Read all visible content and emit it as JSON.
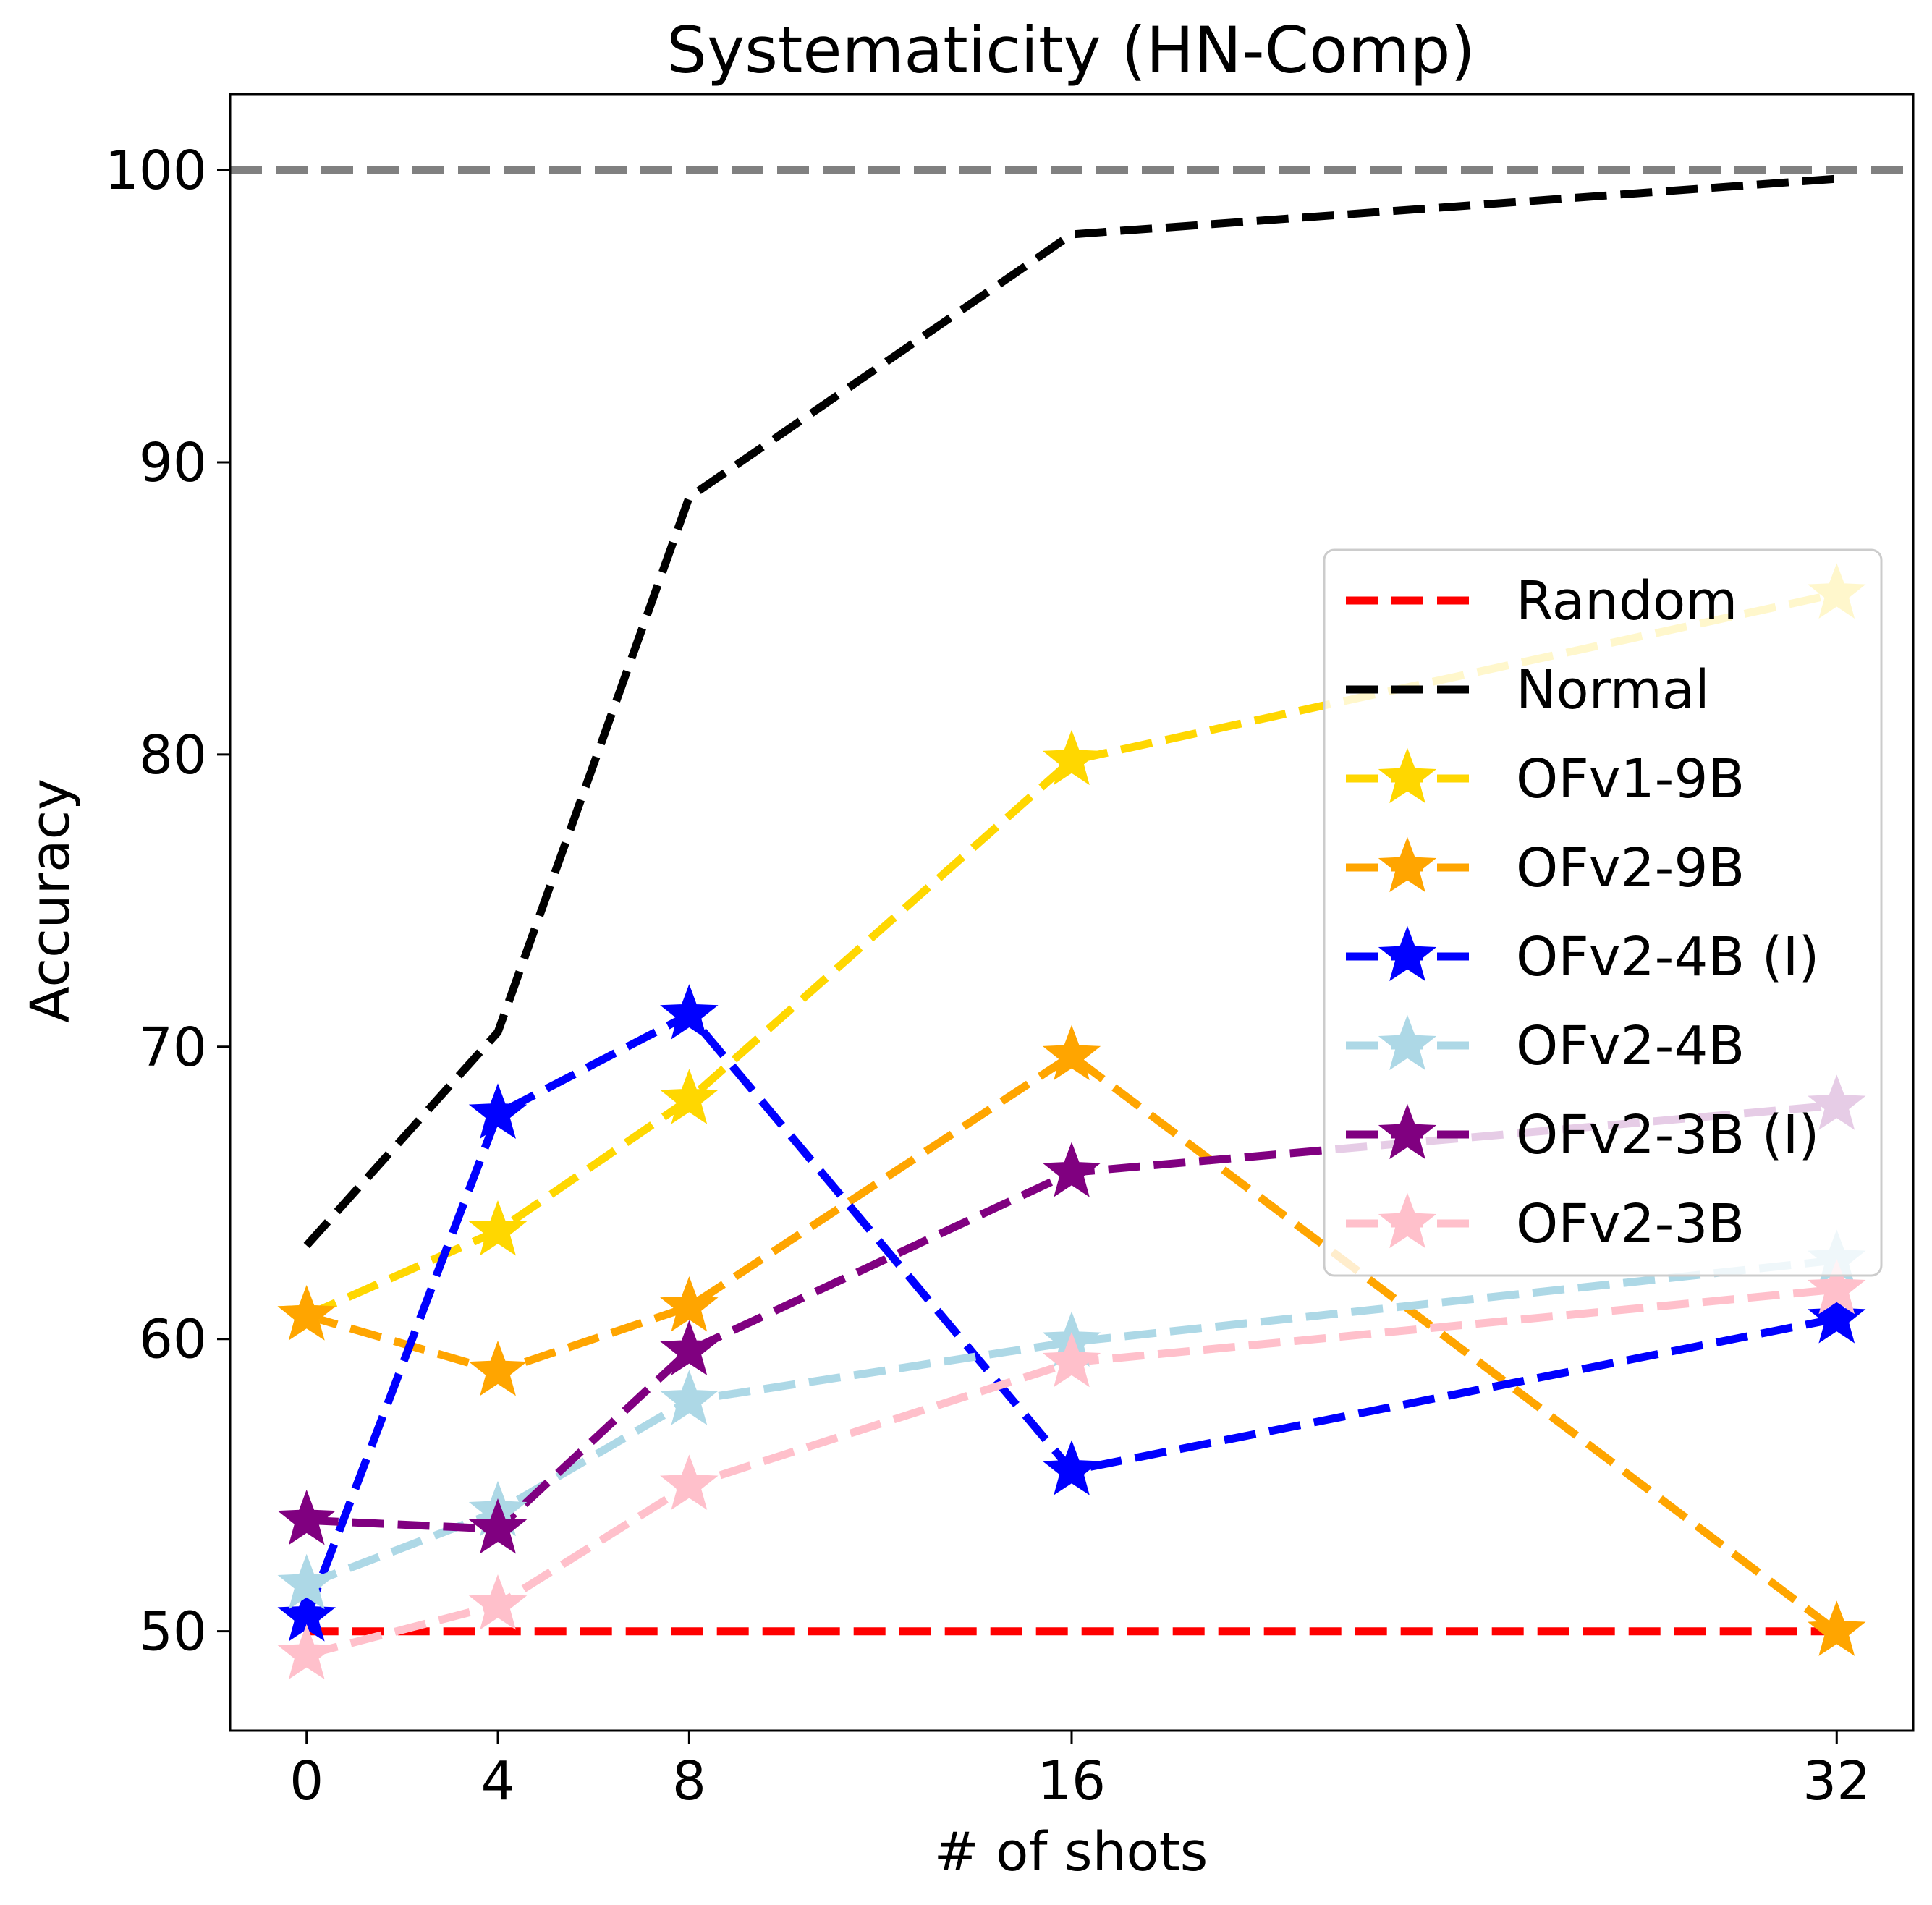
{
  "chart_data": {
    "type": "line",
    "title": "Systematicity (HN-Comp)",
    "xlabel": "# of shots",
    "ylabel": "Accuracy",
    "x": [
      0,
      4,
      8,
      16,
      32
    ],
    "xticks": [
      "0",
      "4",
      "8",
      "16",
      "32"
    ],
    "yticks": [
      "50",
      "60",
      "70",
      "80",
      "90",
      "100"
    ],
    "xlim": [
      -1.6,
      33.6
    ],
    "ylim": [
      46.6,
      102.6
    ],
    "grid": false,
    "legend_position": "center-right",
    "reference_lines": [
      {
        "y": 100,
        "color": "#808080"
      }
    ],
    "series": [
      {
        "name": "Random",
        "color": "#ff0000",
        "marker": "none",
        "values": [
          50,
          50,
          50,
          50,
          50
        ]
      },
      {
        "name": "Normal",
        "color": "#000000",
        "marker": "none",
        "values": [
          63.2,
          70.5,
          88.8,
          97.8,
          99.7
        ]
      },
      {
        "name": "OFv1-9B",
        "color": "#ffd700",
        "marker": "star",
        "values": [
          60.8,
          63.7,
          68.2,
          79.8,
          85.5
        ]
      },
      {
        "name": "OFv2-9B",
        "color": "#ffa500",
        "marker": "star",
        "values": [
          60.8,
          58.9,
          61.1,
          69.7,
          50.0
        ]
      },
      {
        "name": "OFv2-4B (I)",
        "color": "#0000ff",
        "marker": "star",
        "values": [
          50.5,
          67.7,
          71.1,
          55.5,
          60.7
        ]
      },
      {
        "name": "OFv2-4B",
        "color": "#add8e6",
        "marker": "star",
        "values": [
          51.6,
          54.1,
          57.9,
          59.9,
          62.7
        ]
      },
      {
        "name": "OFv2-3B (I)",
        "color": "#800080",
        "marker": "star",
        "values": [
          53.8,
          53.5,
          59.6,
          65.7,
          68.0
        ]
      },
      {
        "name": "OFv2-3B",
        "color": "#ffc0cb",
        "marker": "star",
        "values": [
          49.2,
          50.9,
          55.0,
          59.2,
          61.7
        ]
      }
    ]
  }
}
